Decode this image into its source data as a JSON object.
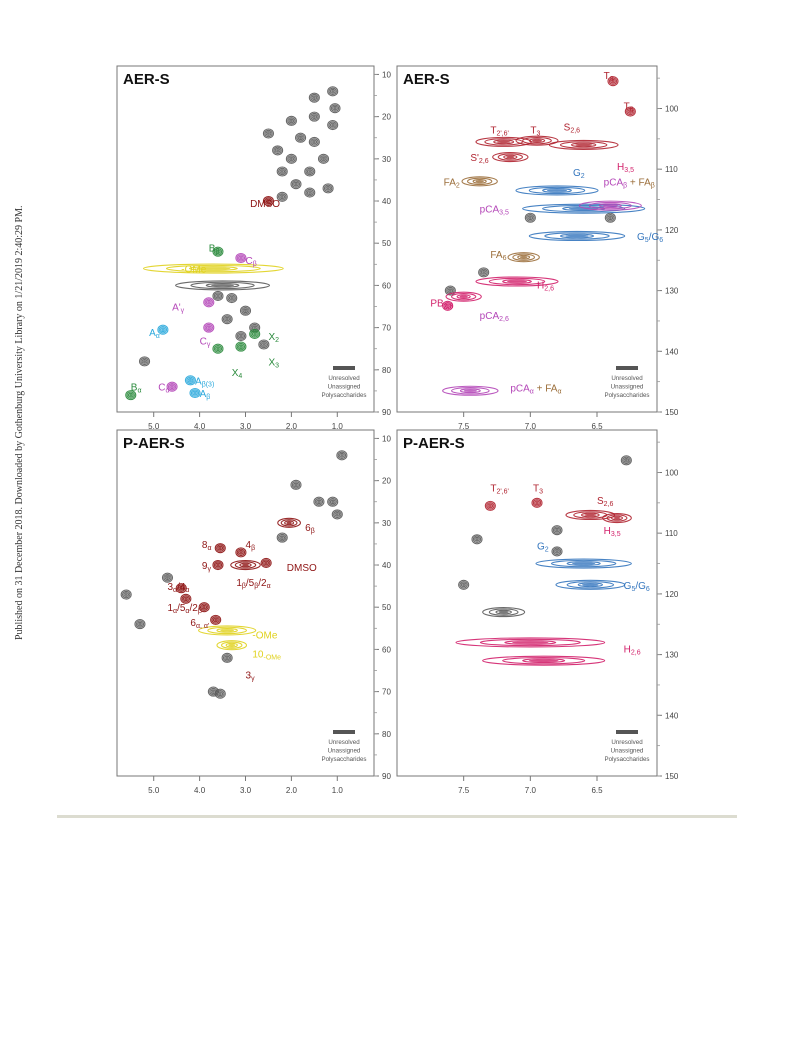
{
  "sidebar_note": "Published on 31 December 2018. Downloaded by Gothenburg University Library on 1/21/2019 2:40:29 PM.",
  "legend": [
    "Unresolved",
    "Unassigned",
    "Polysaccharides"
  ],
  "colors": {
    "gray": "#5a5a5a",
    "red": "#b02430",
    "blue": "#3476be",
    "magenta": "#d21f6a",
    "purple": "#b447b8",
    "brown": "#9b6e3a",
    "green": "#2a8a3c",
    "yellow": "#e0d21e",
    "cyan": "#2aa8dc",
    "darkred": "#8e1414"
  },
  "chart_data": [
    {
      "type": "scatter",
      "title": "AER-S",
      "x_ticks": [
        "5.0",
        "4.0",
        "3.0",
        "2.0",
        "1.0"
      ],
      "y_ticks": [
        "10",
        "20",
        "30",
        "40",
        "50",
        "60",
        "70",
        "80",
        "90"
      ],
      "xlim": [
        5.8,
        0.2
      ],
      "ylim": [
        8,
        90
      ],
      "labels": [
        {
          "text": "DMSO",
          "x": 2.9,
          "y": 40.5,
          "color": "darkred"
        },
        {
          "text": "B",
          "sub": "β",
          "x": 3.8,
          "y": 51,
          "color": "green"
        },
        {
          "text": "C",
          "sub": "β",
          "x": 3.0,
          "y": 54,
          "color": "purple"
        },
        {
          "text": "-OMe",
          "x": 4.4,
          "y": 56,
          "color": "yellow"
        },
        {
          "text": "A'",
          "sub": "γ",
          "x": 4.6,
          "y": 65,
          "color": "purple"
        },
        {
          "text": "A",
          "sub": "α",
          "x": 5.1,
          "y": 71,
          "color": "cyan"
        },
        {
          "text": "C",
          "sub": "γ",
          "x": 4.0,
          "y": 73,
          "color": "purple"
        },
        {
          "text": "X",
          "sub": "2",
          "x": 2.5,
          "y": 72,
          "color": "green"
        },
        {
          "text": "X",
          "sub": "3",
          "x": 2.5,
          "y": 78,
          "color": "green"
        },
        {
          "text": "X",
          "sub": "4",
          "x": 3.3,
          "y": 80.5,
          "color": "green"
        },
        {
          "text": "A",
          "sub": "β(3)",
          "x": 4.1,
          "y": 82.5,
          "color": "cyan"
        },
        {
          "text": "A",
          "sub": "β",
          "x": 4.0,
          "y": 85.5,
          "color": "cyan"
        },
        {
          "text": "B",
          "sub": "α",
          "x": 5.5,
          "y": 84,
          "color": "green"
        },
        {
          "text": "C",
          "sub": "α",
          "x": 4.9,
          "y": 84,
          "color": "purple"
        }
      ],
      "blobs": [
        {
          "x": 1.1,
          "y": 14,
          "c": "gray"
        },
        {
          "x": 1.05,
          "y": 18,
          "c": "gray"
        },
        {
          "x": 1.5,
          "y": 15.5,
          "c": "gray"
        },
        {
          "x": 1.1,
          "y": 22,
          "c": "gray"
        },
        {
          "x": 1.5,
          "y": 20,
          "c": "gray"
        },
        {
          "x": 1.5,
          "y": 26,
          "c": "gray"
        },
        {
          "x": 2.0,
          "y": 21,
          "c": "gray"
        },
        {
          "x": 1.8,
          "y": 25,
          "c": "gray"
        },
        {
          "x": 2.5,
          "y": 24,
          "c": "gray"
        },
        {
          "x": 2.0,
          "y": 30,
          "c": "gray"
        },
        {
          "x": 2.3,
          "y": 28,
          "c": "gray"
        },
        {
          "x": 1.6,
          "y": 33,
          "c": "gray"
        },
        {
          "x": 1.3,
          "y": 30,
          "c": "gray"
        },
        {
          "x": 2.2,
          "y": 33,
          "c": "gray"
        },
        {
          "x": 1.9,
          "y": 36,
          "c": "gray"
        },
        {
          "x": 1.2,
          "y": 37,
          "c": "gray"
        },
        {
          "x": 1.6,
          "y": 38,
          "c": "gray"
        },
        {
          "x": 2.2,
          "y": 39,
          "c": "gray"
        },
        {
          "x": 2.5,
          "y": 40,
          "c": "darkred"
        },
        {
          "x": 3.7,
          "y": 56,
          "c": "yellow",
          "w": 3.0
        },
        {
          "x": 3.5,
          "y": 60,
          "c": "gray",
          "w": 2.0
        },
        {
          "x": 3.3,
          "y": 63,
          "c": "gray"
        },
        {
          "x": 3.6,
          "y": 62.5,
          "c": "gray"
        },
        {
          "x": 3.0,
          "y": 66,
          "c": "gray"
        },
        {
          "x": 2.8,
          "y": 70,
          "c": "gray"
        },
        {
          "x": 3.4,
          "y": 68,
          "c": "gray"
        },
        {
          "x": 3.1,
          "y": 72,
          "c": "gray"
        },
        {
          "x": 2.6,
          "y": 74,
          "c": "gray"
        },
        {
          "x": 3.8,
          "y": 64,
          "c": "purple"
        },
        {
          "x": 3.1,
          "y": 53.5,
          "c": "purple"
        },
        {
          "x": 3.6,
          "y": 52,
          "c": "green"
        },
        {
          "x": 2.8,
          "y": 71.5,
          "c": "green"
        },
        {
          "x": 3.1,
          "y": 74.5,
          "c": "green"
        },
        {
          "x": 3.6,
          "y": 75,
          "c": "green"
        },
        {
          "x": 3.8,
          "y": 70,
          "c": "purple"
        },
        {
          "x": 4.8,
          "y": 70.5,
          "c": "cyan"
        },
        {
          "x": 4.2,
          "y": 82.5,
          "c": "cyan"
        },
        {
          "x": 4.1,
          "y": 85.5,
          "c": "cyan"
        },
        {
          "x": 5.5,
          "y": 86,
          "c": "green"
        },
        {
          "x": 4.6,
          "y": 84,
          "c": "purple"
        },
        {
          "x": 5.2,
          "y": 78,
          "c": "gray"
        }
      ]
    },
    {
      "type": "scatter",
      "title": "AER-S",
      "x_ticks": [
        "7.5",
        "7.0",
        "6.5"
      ],
      "y_ticks": [
        "100",
        "110",
        "120",
        "130",
        "140",
        "150"
      ],
      "xlim": [
        8.0,
        6.05
      ],
      "ylim": [
        93,
        150
      ],
      "labels": [
        {
          "text": "T",
          "sub": "8",
          "x": 6.45,
          "y": 94.5,
          "color": "red"
        },
        {
          "text": "T",
          "sub": "6",
          "x": 6.3,
          "y": 99.5,
          "color": "red"
        },
        {
          "text": "T",
          "sub": "2',6'",
          "x": 7.3,
          "y": 103.5,
          "color": "red"
        },
        {
          "text": "T",
          "sub": "3",
          "x": 7.0,
          "y": 103.5,
          "color": "red"
        },
        {
          "text": "S",
          "sub": "2,6",
          "x": 6.75,
          "y": 103,
          "color": "red"
        },
        {
          "text": "S'",
          "sub": "2,6",
          "x": 7.45,
          "y": 108,
          "color": "red"
        },
        {
          "text": "FA",
          "sub": "2",
          "x": 7.65,
          "y": 112,
          "color": "brown"
        },
        {
          "text": "G",
          "sub": "2",
          "x": 6.68,
          "y": 110.5,
          "color": "blue"
        },
        {
          "text": "H",
          "sub": "3,5",
          "x": 6.35,
          "y": 109.5,
          "color": "magenta"
        },
        {
          "text": "pCA",
          "sub": "β",
          "x": 6.45,
          "y": 112,
          "color": "purple",
          "extra": " + FA",
          "extraSub": "β",
          "extraColor": "brown"
        },
        {
          "text": "pCA",
          "sub": "3,5",
          "x": 7.38,
          "y": 116.5,
          "color": "purple"
        },
        {
          "text": "G",
          "sub": "5",
          "x": 6.2,
          "y": 121,
          "color": "blue",
          "extra": "/G",
          "extraSub": "6",
          "extraColor": "blue"
        },
        {
          "text": "FA",
          "sub": "6",
          "x": 7.3,
          "y": 124,
          "color": "brown"
        },
        {
          "text": "H",
          "sub": "2,6",
          "x": 6.95,
          "y": 129,
          "color": "magenta"
        },
        {
          "text": "PB",
          "sub": "2,6",
          "x": 7.75,
          "y": 132,
          "color": "magenta"
        },
        {
          "text": "pCA",
          "sub": "2,6",
          "x": 7.38,
          "y": 134,
          "color": "purple"
        },
        {
          "text": "pCA",
          "sub": "α",
          "x": 7.15,
          "y": 146,
          "color": "purple",
          "extra": " + FA",
          "extraSub": "α",
          "extraColor": "brown"
        }
      ],
      "blobs": [
        {
          "x": 6.38,
          "y": 95.5,
          "c": "red"
        },
        {
          "x": 6.25,
          "y": 100.5,
          "c": "red"
        },
        {
          "x": 7.2,
          "y": 105.5,
          "c": "red",
          "w": 0.4
        },
        {
          "x": 6.95,
          "y": 105.3,
          "c": "red",
          "w": 0.3
        },
        {
          "x": 6.6,
          "y": 106,
          "c": "red",
          "w": 0.5
        },
        {
          "x": 7.15,
          "y": 108,
          "c": "red",
          "w": 0.25
        },
        {
          "x": 7.38,
          "y": 112,
          "c": "brown",
          "w": 0.25
        },
        {
          "x": 6.8,
          "y": 113.5,
          "c": "blue",
          "w": 0.6
        },
        {
          "x": 6.6,
          "y": 116.5,
          "c": "blue",
          "w": 0.9
        },
        {
          "x": 6.65,
          "y": 121,
          "c": "blue",
          "w": 0.7
        },
        {
          "x": 6.4,
          "y": 116,
          "c": "purple",
          "w": 0.45
        },
        {
          "x": 7.0,
          "y": 118,
          "c": "gray"
        },
        {
          "x": 6.4,
          "y": 118,
          "c": "gray"
        },
        {
          "x": 7.05,
          "y": 124.5,
          "c": "brown",
          "w": 0.22
        },
        {
          "x": 7.1,
          "y": 128.5,
          "c": "magenta",
          "w": 0.6
        },
        {
          "x": 7.35,
          "y": 127,
          "c": "gray"
        },
        {
          "x": 7.6,
          "y": 130,
          "c": "gray"
        },
        {
          "x": 7.5,
          "y": 131,
          "c": "magenta",
          "w": 0.25
        },
        {
          "x": 7.62,
          "y": 132.5,
          "c": "magenta"
        },
        {
          "x": 7.45,
          "y": 146.5,
          "c": "purple",
          "w": 0.4
        }
      ]
    },
    {
      "type": "scatter",
      "title": "P-AER-S",
      "x_ticks": [
        "5.0",
        "4.0",
        "3.0",
        "2.0",
        "1.0"
      ],
      "y_ticks": [
        "10",
        "20",
        "30",
        "40",
        "50",
        "60",
        "70",
        "80",
        "90"
      ],
      "xlim": [
        5.8,
        0.2
      ],
      "ylim": [
        8,
        90
      ],
      "labels": [
        {
          "text": "6",
          "sub": "β",
          "x": 1.7,
          "y": 31,
          "color": "darkred"
        },
        {
          "text": "8",
          "sub": "α",
          "x": 3.95,
          "y": 35,
          "color": "darkred"
        },
        {
          "text": "4",
          "sub": "β",
          "x": 3.0,
          "y": 35,
          "color": "darkred"
        },
        {
          "text": "9",
          "sub": "γ",
          "x": 3.95,
          "y": 40,
          "color": "darkred"
        },
        {
          "text": "DMSO",
          "x": 2.1,
          "y": 40.5,
          "color": "darkred"
        },
        {
          "text": "1",
          "sub": "β",
          "x": 3.2,
          "y": 44,
          "color": "darkred",
          "extra": "/5",
          "extraSub": "β",
          "extraColor": "darkred",
          "extra2": "/2",
          "extra2Sub": "α"
        },
        {
          "text": "3",
          "sub": "α",
          "x": 4.7,
          "y": 45,
          "color": "darkred",
          "extra": "/4",
          "extraSub": "α",
          "extraColor": "darkred"
        },
        {
          "text": "1",
          "sub": "α",
          "x": 4.7,
          "y": 50,
          "color": "darkred",
          "extra": "/5",
          "extraSub": "α",
          "extraColor": "darkred",
          "extra2": "/2",
          "extra2Sub": "β"
        },
        {
          "text": "6",
          "sub": "α, α'",
          "x": 4.2,
          "y": 53.5,
          "color": "darkred"
        },
        {
          "text": "-OMe",
          "x": 2.85,
          "y": 56.5,
          "color": "yellow"
        },
        {
          "text": "10",
          "sub": "-OMe",
          "x": 2.85,
          "y": 61,
          "color": "yellow"
        },
        {
          "text": "3",
          "sub": "γ",
          "x": 3.0,
          "y": 66,
          "color": "darkred"
        }
      ],
      "blobs": [
        {
          "x": 0.9,
          "y": 14,
          "c": "gray"
        },
        {
          "x": 1.9,
          "y": 21,
          "c": "gray"
        },
        {
          "x": 1.1,
          "y": 25,
          "c": "gray"
        },
        {
          "x": 1.0,
          "y": 28,
          "c": "gray"
        },
        {
          "x": 1.4,
          "y": 25,
          "c": "gray"
        },
        {
          "x": 2.05,
          "y": 30,
          "c": "darkred",
          "w": 0.45
        },
        {
          "x": 2.2,
          "y": 33.5,
          "c": "gray"
        },
        {
          "x": 3.55,
          "y": 36,
          "c": "darkred"
        },
        {
          "x": 3.1,
          "y": 37,
          "c": "darkred"
        },
        {
          "x": 3.6,
          "y": 40,
          "c": "darkred"
        },
        {
          "x": 3.0,
          "y": 40,
          "c": "darkred",
          "w": 0.6
        },
        {
          "x": 2.55,
          "y": 39.5,
          "c": "darkred"
        },
        {
          "x": 4.7,
          "y": 43,
          "c": "gray"
        },
        {
          "x": 4.4,
          "y": 45.5,
          "c": "darkred"
        },
        {
          "x": 4.3,
          "y": 48,
          "c": "darkred"
        },
        {
          "x": 3.9,
          "y": 50,
          "c": "darkred"
        },
        {
          "x": 3.65,
          "y": 53,
          "c": "darkred"
        },
        {
          "x": 3.4,
          "y": 55.5,
          "c": "yellow",
          "w": 1.2
        },
        {
          "x": 3.3,
          "y": 59,
          "c": "yellow",
          "w": 0.6
        },
        {
          "x": 3.4,
          "y": 62,
          "c": "gray"
        },
        {
          "x": 5.6,
          "y": 47,
          "c": "gray"
        },
        {
          "x": 5.3,
          "y": 54,
          "c": "gray"
        },
        {
          "x": 3.7,
          "y": 70,
          "c": "gray"
        },
        {
          "x": 3.55,
          "y": 70.5,
          "c": "gray"
        }
      ]
    },
    {
      "type": "scatter",
      "title": "P-AER-S",
      "x_ticks": [
        "7.5",
        "7.0",
        "6.5"
      ],
      "y_ticks": [
        "100",
        "110",
        "120",
        "130",
        "140",
        "150"
      ],
      "xlim": [
        8.0,
        6.05
      ],
      "ylim": [
        93,
        150
      ],
      "labels": [
        {
          "text": "T",
          "sub": "2',6'",
          "x": 7.3,
          "y": 102.5,
          "color": "red"
        },
        {
          "text": "T",
          "sub": "3",
          "x": 6.98,
          "y": 102.5,
          "color": "red"
        },
        {
          "text": "S",
          "sub": "2,6",
          "x": 6.5,
          "y": 104.5,
          "color": "red"
        },
        {
          "text": "H",
          "sub": "3,5",
          "x": 6.45,
          "y": 109.5,
          "color": "magenta"
        },
        {
          "text": "G",
          "sub": "2",
          "x": 6.95,
          "y": 112,
          "color": "blue"
        },
        {
          "text": "G",
          "sub": "5",
          "x": 6.3,
          "y": 118.5,
          "color": "blue",
          "extra": "/G",
          "extraSub": "6",
          "extraColor": "blue"
        },
        {
          "text": "H",
          "sub": "2,6",
          "x": 6.3,
          "y": 129,
          "color": "magenta"
        }
      ],
      "blobs": [
        {
          "x": 6.28,
          "y": 98,
          "c": "gray"
        },
        {
          "x": 7.3,
          "y": 105.5,
          "c": "red"
        },
        {
          "x": 6.95,
          "y": 105,
          "c": "red"
        },
        {
          "x": 6.55,
          "y": 107,
          "c": "red",
          "w": 0.35
        },
        {
          "x": 6.35,
          "y": 107.5,
          "c": "red",
          "w": 0.2
        },
        {
          "x": 6.8,
          "y": 109.5,
          "c": "gray"
        },
        {
          "x": 7.4,
          "y": 111,
          "c": "gray"
        },
        {
          "x": 6.8,
          "y": 113,
          "c": "gray"
        },
        {
          "x": 6.6,
          "y": 115,
          "c": "blue",
          "w": 0.7
        },
        {
          "x": 6.55,
          "y": 118.5,
          "c": "blue",
          "w": 0.5
        },
        {
          "x": 7.5,
          "y": 118.5,
          "c": "gray"
        },
        {
          "x": 7.2,
          "y": 123,
          "c": "gray",
          "w": 0.3
        },
        {
          "x": 7.0,
          "y": 128,
          "c": "magenta",
          "w": 1.1
        },
        {
          "x": 6.9,
          "y": 131,
          "c": "magenta",
          "w": 0.9
        }
      ]
    }
  ]
}
